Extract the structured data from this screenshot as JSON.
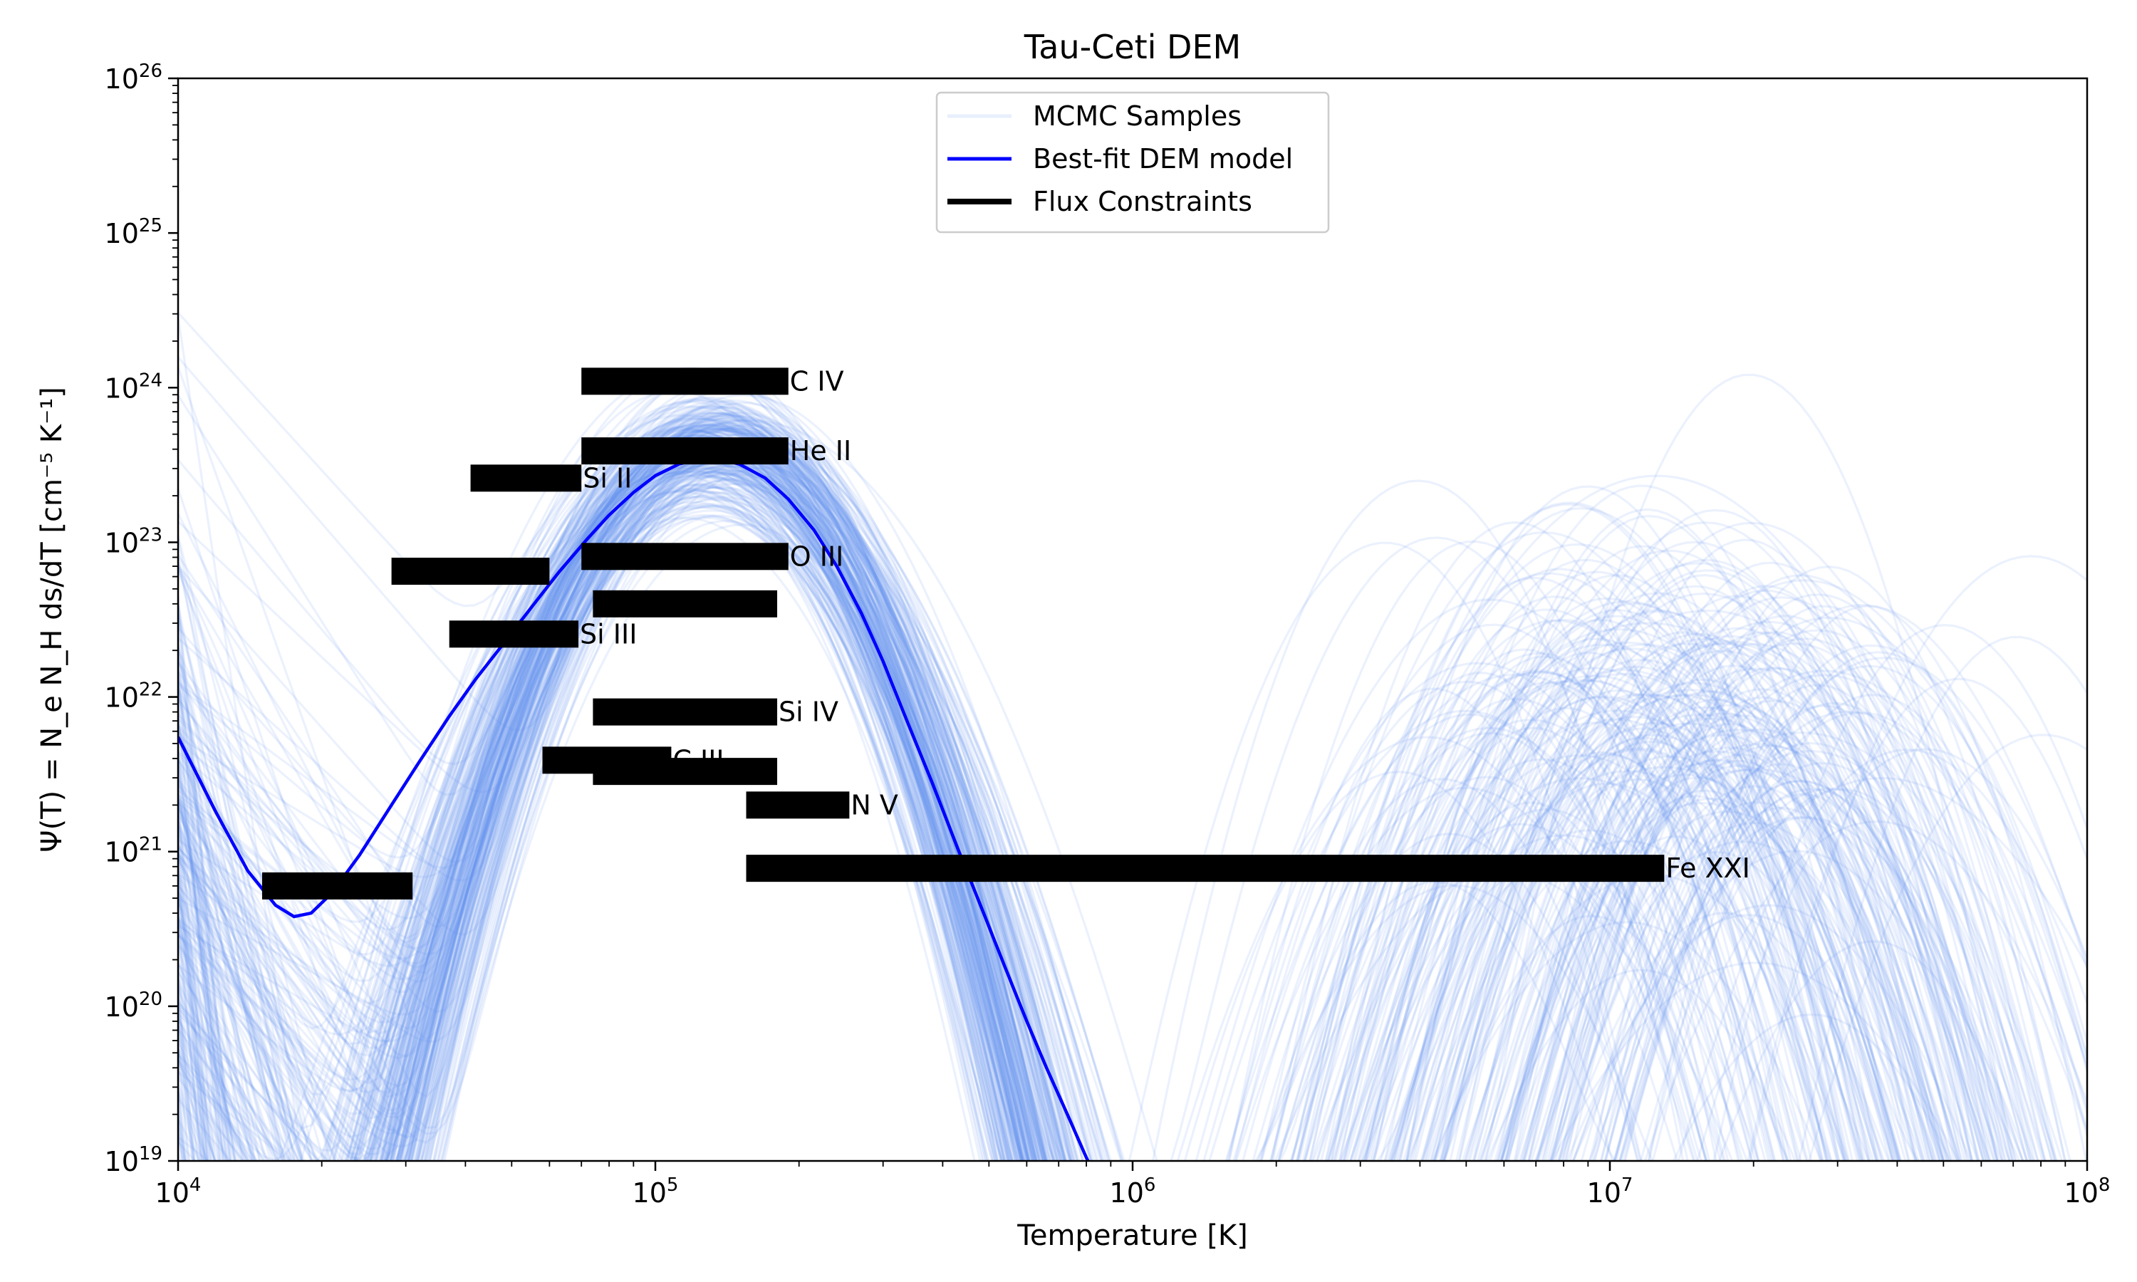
{
  "chart_data": {
    "type": "line",
    "title": "Tau-Ceti DEM",
    "xlabel": "Temperature [K]",
    "ylabel": "Ψ(T) = N_e N_H ds/dT [cm⁻⁵ K⁻¹]",
    "xscale": "log",
    "yscale": "log",
    "xlim": [
      10000,
      100000000
    ],
    "ylim": [
      1e+19,
      1e+26
    ],
    "grid": false,
    "legend_position": "top-center",
    "x_ticks": [
      {
        "base": "10",
        "exp": "4",
        "value": 10000
      },
      {
        "base": "10",
        "exp": "5",
        "value": 100000
      },
      {
        "base": "10",
        "exp": "6",
        "value": 1000000
      },
      {
        "base": "10",
        "exp": "7",
        "value": 10000000
      },
      {
        "base": "10",
        "exp": "8",
        "value": 100000000
      }
    ],
    "y_ticks": [
      {
        "base": "10",
        "exp": "19",
        "value": 1e+19
      },
      {
        "base": "10",
        "exp": "20",
        "value": 1e+20
      },
      {
        "base": "10",
        "exp": "21",
        "value": 1e+21
      },
      {
        "base": "10",
        "exp": "22",
        "value": 1e+22
      },
      {
        "base": "10",
        "exp": "23",
        "value": 1e+23
      },
      {
        "base": "10",
        "exp": "24",
        "value": 1e+24
      },
      {
        "base": "10",
        "exp": "25",
        "value": 1e+25
      },
      {
        "base": "10",
        "exp": "26",
        "value": 1e+26
      }
    ],
    "legend": [
      {
        "label": "MCMC Samples",
        "color": "#6495ED"
      },
      {
        "label": "Best-fit DEM model",
        "color": "#0000FF"
      },
      {
        "label": "Flux Constraints",
        "color": "#000000"
      }
    ],
    "colors": {
      "samples": "#6495ED",
      "best_fit": "#0000FF",
      "constraints": "#000000"
    },
    "series": [
      {
        "name": "Best-fit DEM model",
        "points": [
          [
            10000,
            5.5e+21
          ],
          [
            12000,
            1.8e+21
          ],
          [
            14000,
            7.5e+20
          ],
          [
            16000,
            4.5e+20
          ],
          [
            17500,
            3.8e+20
          ],
          [
            19000,
            4e+20
          ],
          [
            21000,
            5.4e+20
          ],
          [
            24000,
            9.5e+20
          ],
          [
            28000,
            2e+21
          ],
          [
            32000,
            3.8e+21
          ],
          [
            37000,
            7.5e+21
          ],
          [
            42000,
            1.3e+22
          ],
          [
            48000,
            2.2e+22
          ],
          [
            55000,
            3.8e+22
          ],
          [
            63000,
            6.5e+22
          ],
          [
            72000,
            1.05e+23
          ],
          [
            80000,
            1.5e+23
          ],
          [
            90000,
            2.1e+23
          ],
          [
            100000,
            2.7e+23
          ],
          [
            112000,
            3.2e+23
          ],
          [
            125000,
            3.5e+23
          ],
          [
            135000,
            3.5e+23
          ],
          [
            150000,
            3.2e+23
          ],
          [
            170000,
            2.6e+23
          ],
          [
            190000,
            1.9e+23
          ],
          [
            215000,
            1.2e+23
          ],
          [
            240000,
            7e+22
          ],
          [
            270000,
            3.5e+22
          ],
          [
            300000,
            1.7e+22
          ],
          [
            340000,
            6.5e+21
          ],
          [
            380000,
            2.8e+21
          ],
          [
            430000,
            1.05e+21
          ],
          [
            480000,
            4.5e+20
          ],
          [
            540000,
            1.8e+20
          ],
          [
            600000,
            8e+19
          ],
          [
            660000,
            4e+19
          ],
          [
            730000,
            2e+19
          ],
          [
            800000,
            1.05e+19
          ],
          [
            820000,
            9e+18
          ]
        ]
      }
    ],
    "flux_constraints": [
      {
        "ion": "C IV",
        "label": "C IV",
        "t_min": 70000,
        "t_max": 190000,
        "value": 1.1e+24
      },
      {
        "ion": "He II",
        "label": "He II",
        "t_min": 70000,
        "t_max": 190000,
        "value": 3.9e+23
      },
      {
        "ion": "Si II",
        "label": "Si II",
        "t_min": 41000,
        "t_max": 70000,
        "value": 2.6e+23
      },
      {
        "ion": "O III",
        "label": "O III",
        "t_min": 70000,
        "t_max": 190000,
        "value": 8.1e+22
      },
      {
        "ion": "",
        "label": "",
        "t_min": 28000,
        "t_max": 60000,
        "value": 6.5e+22
      },
      {
        "ion": "",
        "label": "",
        "t_min": 74000,
        "t_max": 180000,
        "value": 4e+22
      },
      {
        "ion": "Si III",
        "label": "Si III",
        "t_min": 37000,
        "t_max": 69000,
        "value": 2.55e+22
      },
      {
        "ion": "Si IV",
        "label": "Si IV",
        "t_min": 74000,
        "t_max": 180000,
        "value": 8e+21
      },
      {
        "ion": "C III",
        "label": "C III",
        "t_min": 58000,
        "t_max": 108000,
        "value": 3.9e+21
      },
      {
        "ion": "",
        "label": "",
        "t_min": 74000,
        "t_max": 180000,
        "value": 3.3e+21
      },
      {
        "ion": "N V",
        "label": "N V",
        "t_min": 155000,
        "t_max": 255000,
        "value": 2e+21
      },
      {
        "ion": "Fe XXI",
        "label": "Fe XXI",
        "t_min": 155000,
        "t_max": 13000000,
        "value": 7.8e+20
      },
      {
        "ion": "",
        "label": "",
        "t_min": 15000,
        "t_max": 31000,
        "value": 6e+20
      }
    ]
  }
}
